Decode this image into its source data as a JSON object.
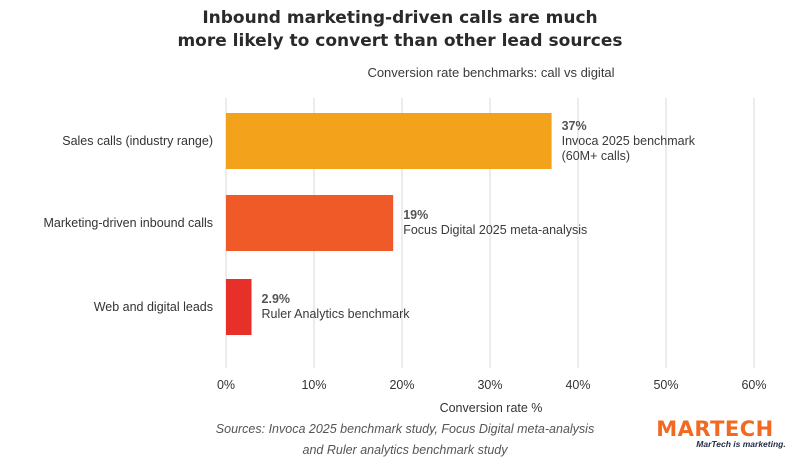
{
  "chart_data": {
    "type": "bar",
    "orientation": "horizontal",
    "title": [
      "Inbound marketing-driven calls are much",
      "more likely to convert than other lead sources"
    ],
    "subtitle": "Conversion rate benchmarks: call vs digital",
    "categories": [
      "Sales calls (industry range)",
      "Marketing-driven inbound calls",
      "Web and digital leads"
    ],
    "values": [
      37,
      19,
      2.9
    ],
    "value_labels": [
      "37%",
      "19%",
      "2.9%"
    ],
    "annotations": [
      [
        "Invoca 2025 benchmark",
        "(60M+ calls)"
      ],
      [
        "Focus Digital 2025 meta-analysis"
      ],
      [
        "Ruler Analytics benchmark"
      ]
    ],
    "colors": [
      "#f3a31b",
      "#f05a28",
      "#e8302b"
    ],
    "xlabel": "Conversion rate %",
    "ylabel": "",
    "xlim": [
      0,
      60
    ],
    "xticks": [
      0,
      10,
      20,
      30,
      40,
      50,
      60
    ],
    "xtick_labels": [
      "0%",
      "10%",
      "20%",
      "30%",
      "40%",
      "50%",
      "60%"
    ],
    "grid": true,
    "legend": "none"
  },
  "sources": [
    "Sources: Invoca 2025 benchmark study, Focus Digital meta-analysis",
    "and Ruler analytics benchmark study"
  ],
  "logo": {
    "name": "MARTECH",
    "tagline": "MarTech is marketing.",
    "color": "#f26a21",
    "tagline_color": "#1f2a44"
  }
}
